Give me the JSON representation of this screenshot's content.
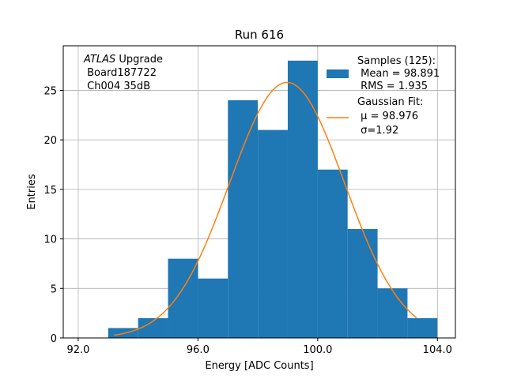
{
  "chart_data": {
    "type": "bar",
    "title": "Run 616",
    "xlabel": "Energy [ADC Counts]",
    "ylabel": "Entries",
    "xlim": [
      91.5,
      104.6
    ],
    "ylim": [
      0,
      29.5
    ],
    "xticks": [
      92,
      96,
      100,
      104
    ],
    "xtick_labels": [
      "92.0",
      "96.0",
      "100.0",
      "104.0"
    ],
    "yticks": [
      0,
      5,
      10,
      15,
      20,
      25
    ],
    "yticks_labels": [
      "0",
      "5",
      "10",
      "15",
      "20",
      "25"
    ],
    "grid": true,
    "bin_edges": [
      93,
      94,
      95,
      96,
      97,
      98,
      99,
      100,
      101,
      102,
      103,
      104
    ],
    "counts": [
      1,
      2,
      8,
      6,
      24,
      21,
      28,
      17,
      11,
      5,
      2
    ],
    "bar_color": "#1f77b4",
    "fit": {
      "mu": 98.976,
      "sigma": 1.92,
      "amplitude": 25.8,
      "x_range": [
        93.2,
        103.3
      ],
      "color": "#ff7f0e"
    },
    "annotation": {
      "italic_part": "ATLAS",
      "line1_rest": " Upgrade",
      "line2": " Board187722",
      "line3": " Ch004 35dB"
    },
    "legend": {
      "placement": "top-right",
      "samples_title": "Samples (125):",
      "samples_mean": " Mean = 98.891",
      "samples_rms": " RMS = 1.935",
      "fit_title": "Gaussian Fit:",
      "fit_mu": " μ = 98.976",
      "fit_sigma": " σ=1.92"
    }
  }
}
